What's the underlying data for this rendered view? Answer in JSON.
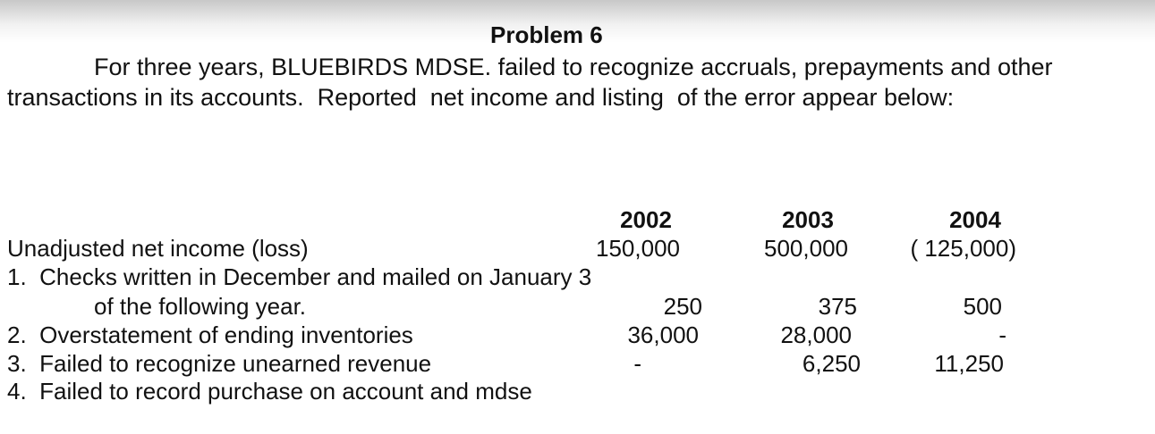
{
  "title": "Problem 6",
  "paragraph": [
    "For three years, BLUEBIRDS MDSE. failed to recognize accruals, prepayments and other",
    "transactions in its accounts.  Reported  net income and listing  of the error appear below:"
  ],
  "table": {
    "headers": [
      "2002",
      "2003",
      "2004"
    ],
    "rows": [
      {
        "label": "Unadjusted net income (loss)",
        "values": [
          "150,000",
          "500,000",
          "( 125,000)"
        ]
      },
      {
        "label": "1.  Checks written in December and mailed on January 3"
      },
      {
        "label": "of the following year.",
        "values": [
          "250",
          "375",
          "500"
        ]
      },
      {
        "label": "2.  Overstatement of ending inventories",
        "values": [
          "36,000",
          "28,000",
          "-"
        ]
      },
      {
        "label": "3.  Failed to recognize unearned revenue",
        "values": [
          "-",
          "6,250",
          "11,250"
        ]
      },
      {
        "label": "4.  Failed to record purchase on account and mdse"
      }
    ]
  }
}
